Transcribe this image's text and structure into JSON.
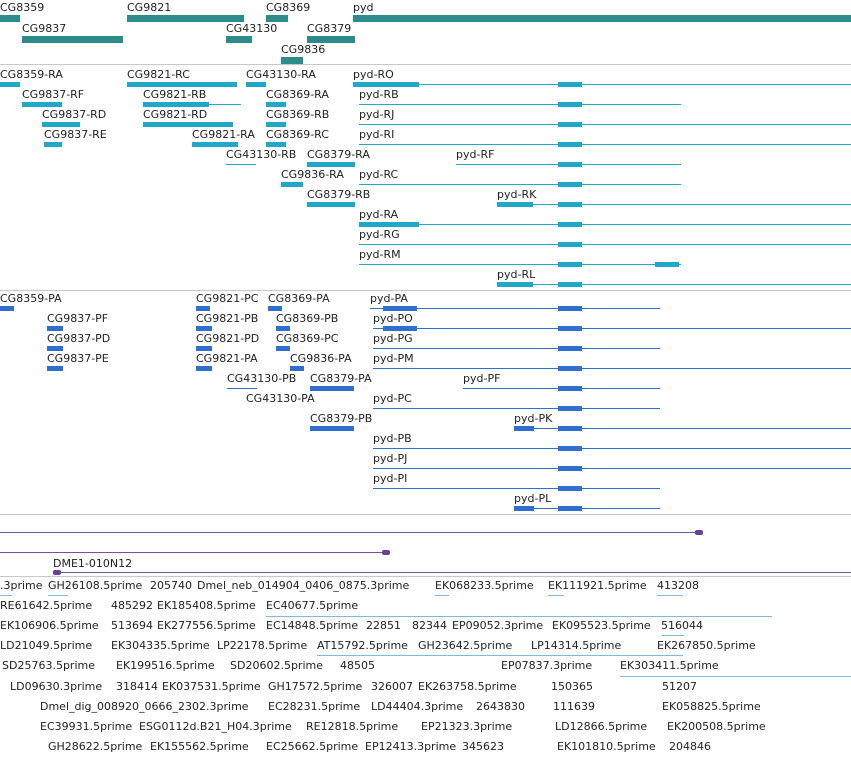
{
  "colors": {
    "gene": "#2e8b8b",
    "transcript": "#20a8c8",
    "cds": "#2e6fd0",
    "clone": "#6a3f98",
    "est": "#7fb8dc"
  },
  "genes": {
    "labels": [
      "CG8359",
      "CG9821",
      "CG8369",
      "pyd",
      "CG9837",
      "CG43130",
      "CG8379",
      "CG9836"
    ]
  },
  "transcripts": {
    "labels": [
      "CG8359-RA",
      "CG9821-RC",
      "CG43130-RA",
      "pyd-RO",
      "CG9837-RF",
      "CG9821-RB",
      "CG8369-RA",
      "pyd-RB",
      "CG9837-RD",
      "CG9821-RD",
      "CG8369-RB",
      "pyd-RJ",
      "CG9837-RE",
      "CG9821-RA",
      "CG8369-RC",
      "pyd-RI",
      "CG43130-RB",
      "CG8379-RA",
      "pyd-RF",
      "CG9836-RA",
      "pyd-RC",
      "CG8379-RB",
      "pyd-RK",
      "pyd-RA",
      "pyd-RG",
      "pyd-RM",
      "pyd-RL"
    ]
  },
  "proteins": {
    "labels": [
      "CG8359-PA",
      "CG9821-PC",
      "CG8369-PA",
      "pyd-PA",
      "CG9837-PF",
      "CG9821-PB",
      "CG8369-PB",
      "pyd-PO",
      "CG9837-PD",
      "CG9821-PD",
      "CG8369-PC",
      "pyd-PG",
      "CG9837-PE",
      "CG9821-PA",
      "CG9836-PA",
      "pyd-PM",
      "CG43130-PB",
      "CG8379-PA",
      "pyd-PF",
      "CG43130-PA",
      "pyd-PC",
      "CG8379-PB",
      "pyd-PK",
      "pyd-PB",
      "pyd-PJ",
      "pyd-PI",
      "pyd-PL"
    ]
  },
  "clones": {
    "label": "DME1-010N12"
  },
  "ests": {
    "labels": [
      ".3prime",
      "GH26108.5prime",
      "205740",
      "Dmel_neb_014904_0406_0875.3prime",
      "EK068233.5prime",
      "EK111921.5prime",
      "413208",
      "RE61642.5prime",
      "485292",
      "EK185408.5prime",
      "EC40677.5prime",
      "EK106906.5prime",
      "513694",
      "EK277556.5prime",
      "EC14848.5prime",
      "22851",
      "82344",
      "EP09052.3prime",
      "EK095523.5prime",
      "516044",
      "LD21049.5prime",
      "EK304335.5prime",
      "LP22178.5prime",
      "AT15792.5prime",
      "GH23642.5prime",
      "LP14314.5prime",
      "EK267850.5prime",
      "SD25763.5prime",
      "EK199516.5prime",
      "SD20602.5prime",
      "48505",
      "EP07837.3prime",
      "EK303411.5prime",
      "LD09630.3prime",
      "318414",
      "EK037531.5prime",
      "GH17572.5prime",
      "326007",
      "EK263758.5prime",
      "150365",
      "51207",
      "Dmel_dig_008920_0666_2302.3prime",
      "EC28231.5prime",
      "LD44404.3prime",
      "2643830",
      "111639",
      "EK058825.5prime",
      "EC39931.5prime",
      "ESG0112d.B21_H04.3prime",
      "RE12818.5prime",
      "EP21323.3prime",
      "LD12866.5prime",
      "EK200508.5prime",
      "GH28622.5prime",
      "EK155562.5prime",
      "EC25662.5prime",
      "EP12413.3prime",
      "345623",
      "EK101810.5prime",
      "204846"
    ]
  }
}
